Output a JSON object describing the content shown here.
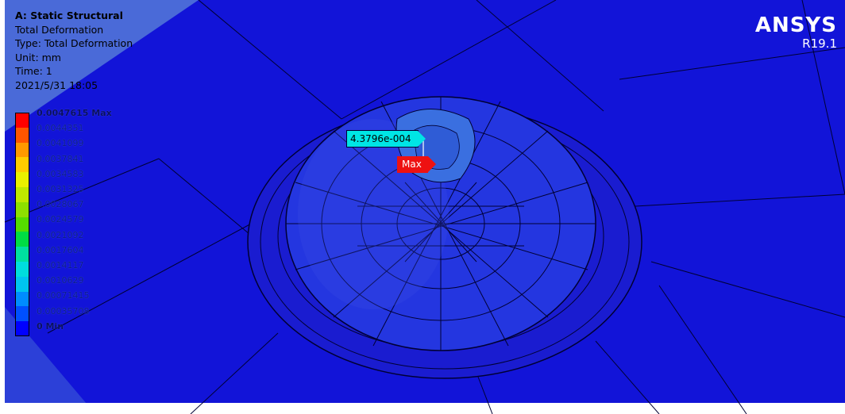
{
  "info": {
    "title": "A: Static Structural",
    "result": "Total Deformation",
    "type": "Type: Total Deformation",
    "unit": "Unit: mm",
    "time": "Time: 1",
    "date": "2021/5/31 18:05"
  },
  "legend": {
    "max_label": "0.0047615 Max",
    "min_label": "0 Min",
    "values": [
      "0.0044351",
      "0.0041099",
      "0.0037841",
      "0.0034583",
      "0.0031325",
      "0.0028067",
      "0.0024579",
      "0.0021092",
      "0.0017604",
      "0.0014117",
      "0.0010629",
      "0.00071415",
      "0.00035708"
    ],
    "colors": [
      "#ff0000",
      "#ff5500",
      "#ff9900",
      "#ffcc00",
      "#eaf000",
      "#bfe800",
      "#8ee000",
      "#55dd00",
      "#00dd44",
      "#00e0a0",
      "#00dddd",
      "#00c4f0",
      "#008cff",
      "#0050ff",
      "#0000ff"
    ]
  },
  "logo": {
    "brand": "ANSYS",
    "version": "R19.1"
  },
  "probe": {
    "value": "4.3796e-004"
  },
  "max_flag": {
    "label": "Max"
  },
  "colors": {
    "background": "#1214d8",
    "mesh_line": "#000033",
    "dome_light": "#3a6fe0"
  }
}
